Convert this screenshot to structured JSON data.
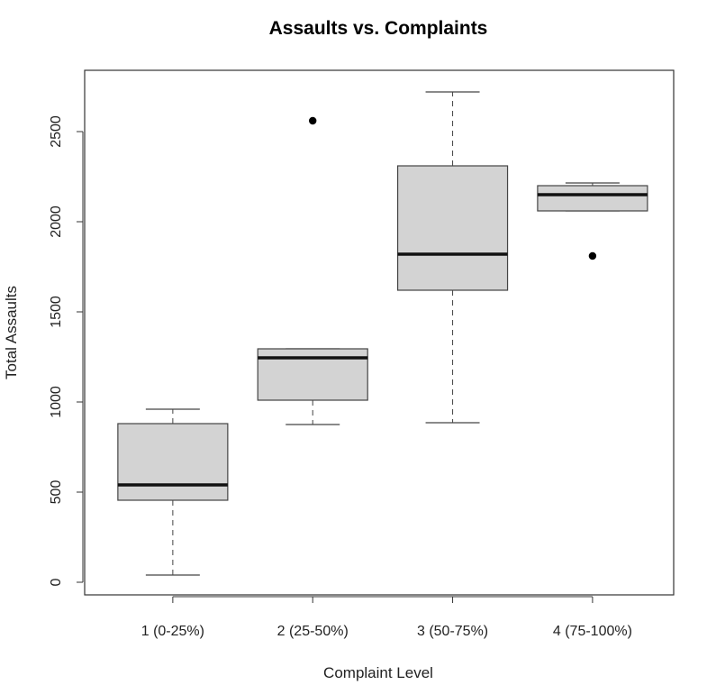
{
  "chart_data": {
    "type": "boxplot",
    "title": "Assaults vs. Complaints",
    "xlabel": "Complaint Level",
    "ylabel": "Total Assaults",
    "ylim": [
      -70,
      2840
    ],
    "yticks": [
      0,
      500,
      1000,
      1500,
      2000,
      2500
    ],
    "grid": false,
    "box_color": "#d3d3d3",
    "categories": [
      "1 (0-25%)",
      "2 (25-50%)",
      "3 (50-75%)",
      "4 (75-100%)"
    ],
    "boxes": [
      {
        "whisker_low": 40,
        "q1": 455,
        "median": 540,
        "q3": 880,
        "whisker_high": 960,
        "outliers": []
      },
      {
        "whisker_low": 875,
        "q1": 1010,
        "median": 1245,
        "q3": 1295,
        "whisker_high": 1295,
        "outliers": [
          2560
        ]
      },
      {
        "whisker_low": 885,
        "q1": 1620,
        "median": 1820,
        "q3": 2310,
        "whisker_high": 2720,
        "outliers": []
      },
      {
        "whisker_low": 2060,
        "q1": 2060,
        "median": 2150,
        "q3": 2200,
        "whisker_high": 2215,
        "outliers": [
          1810
        ]
      }
    ]
  }
}
